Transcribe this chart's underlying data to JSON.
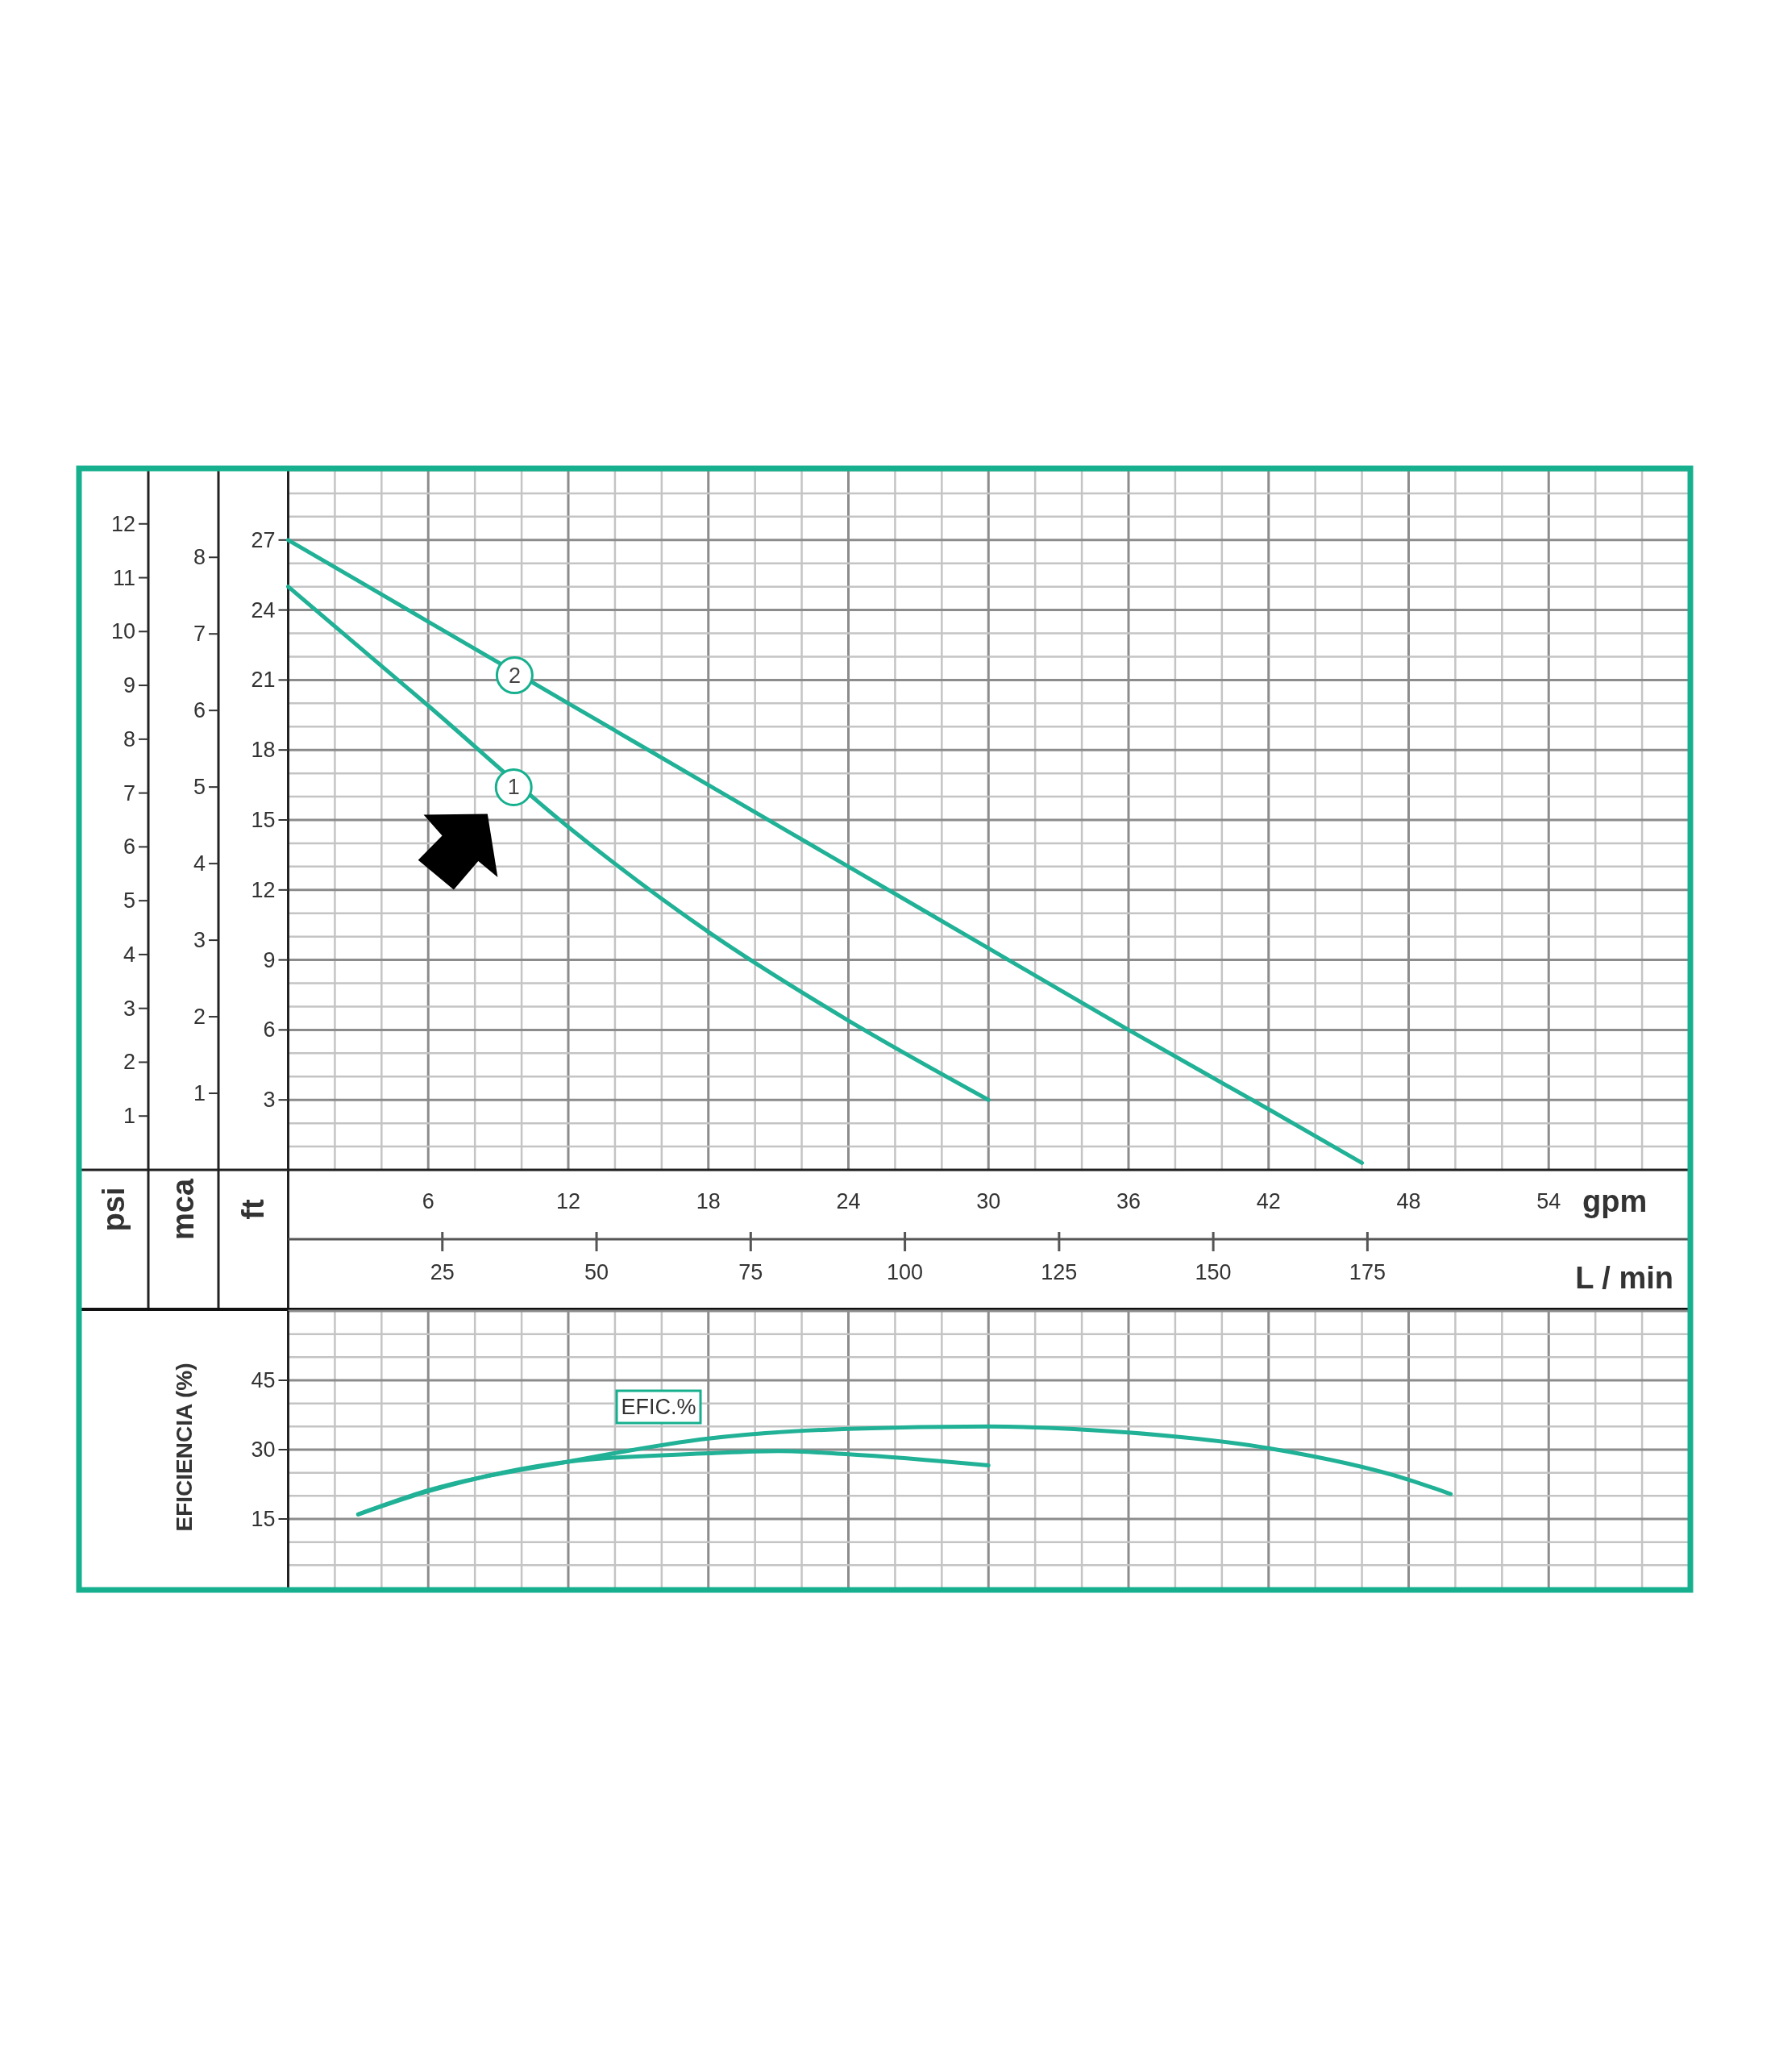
{
  "chart_data": [
    {
      "type": "line",
      "xlabel": "gpm",
      "x2label": "L / min",
      "ylabel": "ft",
      "y2label": "mca",
      "y3label": "psi",
      "xlim": [
        0,
        60
      ],
      "xticks": [
        6,
        12,
        18,
        24,
        30,
        36,
        42,
        48,
        54
      ],
      "x2lim": [
        0,
        227.1
      ],
      "x2ticks": [
        25,
        50,
        75,
        100,
        125,
        150,
        175
      ],
      "ylim": [
        0,
        30
      ],
      "yticks": [
        3,
        6,
        9,
        12,
        15,
        18,
        21,
        24,
        27
      ],
      "y2lim": [
        0,
        9.14
      ],
      "y2ticks": [
        1,
        2,
        3,
        4,
        5,
        6,
        7,
        8
      ],
      "y3lim": [
        0,
        13
      ],
      "y3ticks": [
        1,
        2,
        3,
        4,
        5,
        6,
        7,
        8,
        9,
        10,
        11,
        12
      ],
      "grid": true,
      "series": [
        {
          "color": "#20b196",
          "x": [
            0,
            6,
            12,
            18,
            24,
            30
          ],
          "values": [
            25,
            19.9,
            14.7,
            10.2,
            6.4,
            3.0
          ]
        },
        {
          "color": "#20b196",
          "x": [
            0,
            6,
            12,
            18,
            24,
            30,
            36,
            42,
            46
          ],
          "values": [
            27,
            23.5,
            20,
            16.5,
            13,
            9.5,
            6,
            2.6,
            0.3
          ]
        }
      ],
      "annotations": [
        {
          "text": "1",
          "x": 9.66,
          "y": 16.4
        },
        {
          "text": "2",
          "x": 9.7,
          "y": 21.2
        }
      ]
    },
    {
      "type": "line",
      "ylabel": "EFICIENCIA (%)",
      "tick_labels": "y",
      "xlim": [
        0,
        60
      ],
      "xticks": [
        6,
        12,
        18,
        24,
        30,
        36,
        42,
        48,
        54
      ],
      "ylim": [
        0,
        60
      ],
      "yticks": [
        15,
        30,
        45
      ],
      "grid": true,
      "series": [
        {
          "color": "#20b196",
          "x": [
            3,
            6,
            12,
            18,
            21,
            24,
            30
          ],
          "values": [
            16,
            21,
            27.4,
            29.2,
            29.7,
            29,
            26.6
          ]
        },
        {
          "color": "#20b196",
          "x": [
            3,
            6,
            12,
            18,
            24,
            30,
            36,
            42,
            48,
            49.8
          ],
          "values": [
            16,
            21.2,
            27.4,
            32.4,
            34.5,
            35,
            33.7,
            30.3,
            23.5,
            20.4
          ]
        }
      ],
      "annotations": [
        "EFIC.%"
      ]
    }
  ]
}
